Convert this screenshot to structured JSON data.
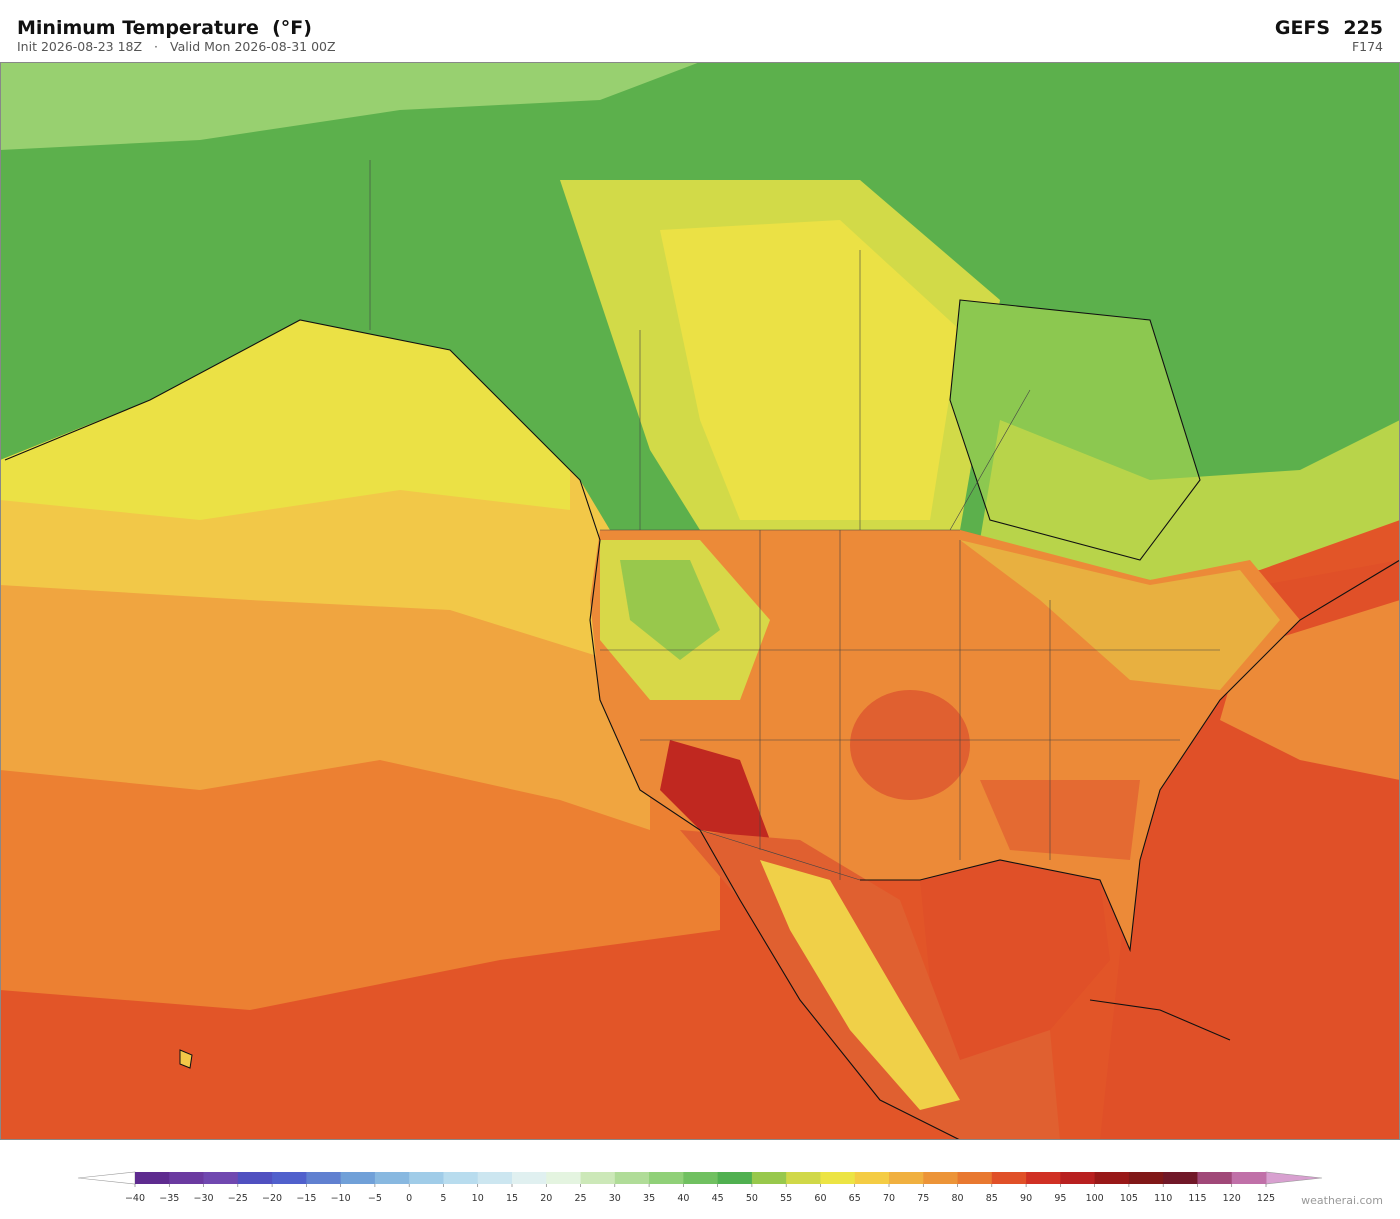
{
  "header": {
    "title": "Minimum Temperature  (°F)",
    "init": "Init 2026-08-23 18Z",
    "separator": "·",
    "valid": "Valid Mon 2026-08-31 00Z",
    "model": "GEFS  225",
    "forecast_hour": "F174"
  },
  "colorbar": {
    "ticks": [
      {
        "value": -40,
        "label": "−40"
      },
      {
        "value": -35,
        "label": "−35"
      },
      {
        "value": -30,
        "label": "−30"
      },
      {
        "value": -25,
        "label": "−25"
      },
      {
        "value": -20,
        "label": "−20"
      },
      {
        "value": -15,
        "label": "−15"
      },
      {
        "value": -10,
        "label": "−10"
      },
      {
        "value": -5,
        "label": "−5"
      },
      0,
      5,
      10,
      15,
      20,
      25,
      30,
      35,
      40,
      45,
      50,
      55,
      60,
      65,
      70,
      75,
      80,
      85,
      90,
      95,
      100,
      105,
      110,
      115,
      120,
      125
    ],
    "colors": [
      "#5e2b8f",
      "#6b3aa0",
      "#7048b0",
      "#5050c0",
      "#5060cc",
      "#6080d0",
      "#70a0d8",
      "#88b8e0",
      "#a0cce8",
      "#b8dcee",
      "#cce6f0",
      "#e0f0f0",
      "#e4f4e0",
      "#cce8b8",
      "#b0dc98",
      "#90d078",
      "#70c060",
      "#50b050",
      "#98c84c",
      "#d0d848",
      "#ece444",
      "#f4cc44",
      "#f0b040",
      "#ec9438",
      "#e87830",
      "#e05028",
      "#d03024",
      "#b82020",
      "#981818",
      "#801818",
      "#701828",
      "#a04878",
      "#c070a8"
    ],
    "under_color": "#ffffff",
    "over_color": "#d8a0d0"
  },
  "watermark": "weatherai.com"
}
